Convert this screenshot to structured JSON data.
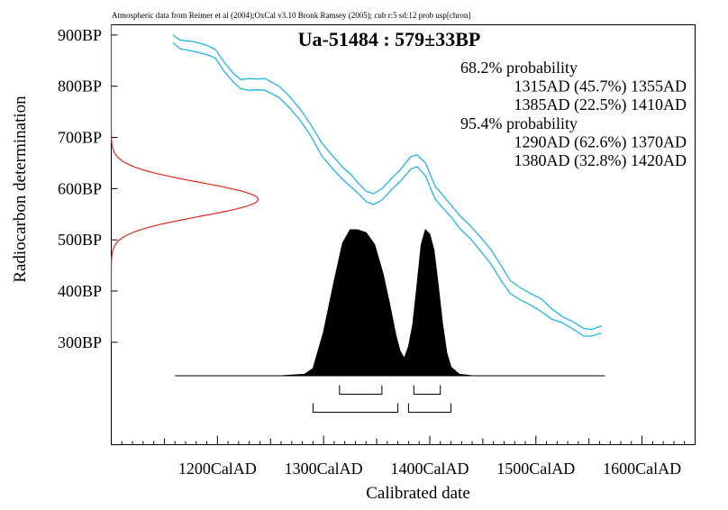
{
  "chart_data": {
    "type": "area",
    "credit": "Atmospheric data from Reimer et al (2004);OxCal v3.10 Bronk Ramsey (2005); cub r:5 sd:12 prob usp[chron]",
    "title": "Ua-51484 : 579±33BP",
    "xlabel": "Calibrated date",
    "ylabel": "Radiocarbon determination",
    "xlim": [
      1100,
      1650
    ],
    "ylim": [
      100,
      920
    ],
    "x_ticks": [
      {
        "value": 1200,
        "label": "1200CalAD"
      },
      {
        "value": 1300,
        "label": "1300CalAD"
      },
      {
        "value": 1400,
        "label": "1400CalAD"
      },
      {
        "value": 1500,
        "label": "1500CalAD"
      },
      {
        "value": 1600,
        "label": "1600CalAD"
      }
    ],
    "y_ticks": [
      {
        "value": 900,
        "label": "900BP"
      },
      {
        "value": 800,
        "label": "800BP"
      },
      {
        "value": 700,
        "label": "700BP"
      },
      {
        "value": 600,
        "label": "600BP"
      },
      {
        "value": 500,
        "label": "500BP"
      },
      {
        "value": 400,
        "label": "400BP"
      },
      {
        "value": 300,
        "label": "300BP"
      }
    ],
    "annotations": [
      {
        "text": "68.2% probability",
        "indent": false
      },
      {
        "text": "1315AD (45.7%) 1355AD",
        "indent": true
      },
      {
        "text": "1385AD (22.5%) 1410AD",
        "indent": true
      },
      {
        "text": "95.4% probability",
        "indent": false
      },
      {
        "text": "1290AD (62.6%) 1370AD",
        "indent": true
      },
      {
        "text": "1380AD (32.8%) 1420AD",
        "indent": true
      }
    ],
    "ranges_68": [
      [
        1315,
        1355
      ],
      [
        1385,
        1410
      ]
    ],
    "ranges_95": [
      [
        1290,
        1370
      ],
      [
        1380,
        1420
      ]
    ],
    "calibration_curve": {
      "x": [
        1158,
        1165,
        1178,
        1190,
        1198,
        1206,
        1215,
        1222,
        1230,
        1238,
        1245,
        1258,
        1268,
        1278,
        1288,
        1298,
        1308,
        1318,
        1326,
        1333,
        1340,
        1347,
        1355,
        1365,
        1372,
        1378,
        1382,
        1388,
        1396,
        1405,
        1412,
        1420,
        1428,
        1438,
        1448,
        1458,
        1468,
        1476,
        1485,
        1495,
        1505,
        1515,
        1525,
        1535,
        1545,
        1552,
        1562
      ],
      "upper": [
        900,
        890,
        887,
        880,
        872,
        848,
        825,
        813,
        815,
        814,
        815,
        800,
        780,
        755,
        725,
        690,
        665,
        642,
        627,
        610,
        595,
        590,
        600,
        622,
        636,
        652,
        662,
        666,
        650,
        605,
        588,
        568,
        548,
        528,
        505,
        480,
        447,
        420,
        407,
        395,
        385,
        365,
        350,
        340,
        327,
        325,
        332
      ],
      "lower": [
        885,
        873,
        868,
        862,
        855,
        830,
        808,
        795,
        792,
        793,
        792,
        778,
        758,
        733,
        703,
        665,
        640,
        618,
        603,
        590,
        575,
        569,
        578,
        600,
        614,
        628,
        638,
        643,
        625,
        580,
        563,
        545,
        523,
        503,
        478,
        452,
        418,
        395,
        383,
        373,
        360,
        345,
        338,
        326,
        312,
        312,
        318
      ]
    },
    "radiocarbon_distribution": {
      "mean": 579,
      "sd": 33
    },
    "calibrated_distribution": {
      "x": [
        1160,
        1260,
        1282,
        1290,
        1300,
        1310,
        1318,
        1325,
        1332,
        1340,
        1348,
        1356,
        1362,
        1368,
        1372,
        1376,
        1380,
        1384,
        1388,
        1392,
        1396,
        1400,
        1404,
        1408,
        1412,
        1416,
        1420,
        1428,
        1440,
        1565
      ],
      "density": [
        0,
        0,
        0.01,
        0.05,
        0.3,
        0.65,
        0.91,
        1.0,
        1.0,
        0.98,
        0.9,
        0.7,
        0.5,
        0.28,
        0.17,
        0.12,
        0.2,
        0.35,
        0.62,
        0.9,
        1.0,
        0.97,
        0.86,
        0.62,
        0.36,
        0.16,
        0.06,
        0.01,
        0,
        0
      ]
    },
    "grid": false,
    "legend": "none"
  }
}
